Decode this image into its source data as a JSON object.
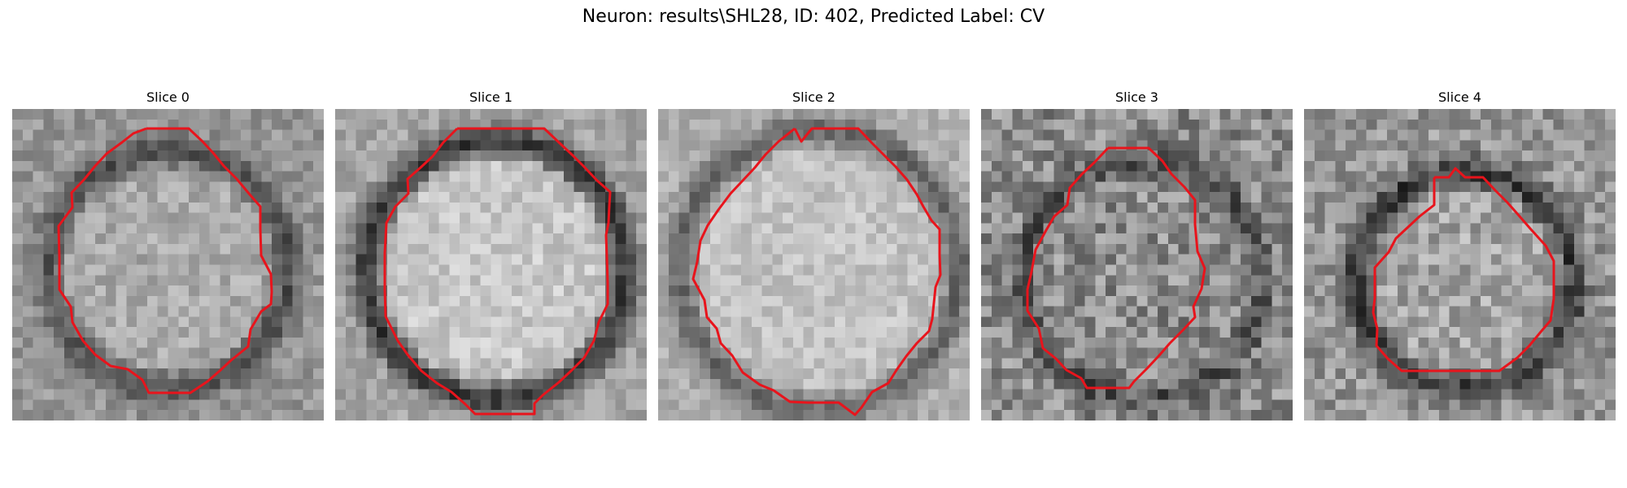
{
  "figure": {
    "title": "Neuron: results\\SHL28, ID: 402, Predicted Label: CV"
  },
  "slices": [
    {
      "title": "Slice 0"
    },
    {
      "title": "Slice 1"
    },
    {
      "title": "Slice 2"
    },
    {
      "title": "Slice 3"
    },
    {
      "title": "Slice 4"
    }
  ],
  "style": {
    "contour_color": "#e8141c",
    "colormap": "gray"
  }
}
